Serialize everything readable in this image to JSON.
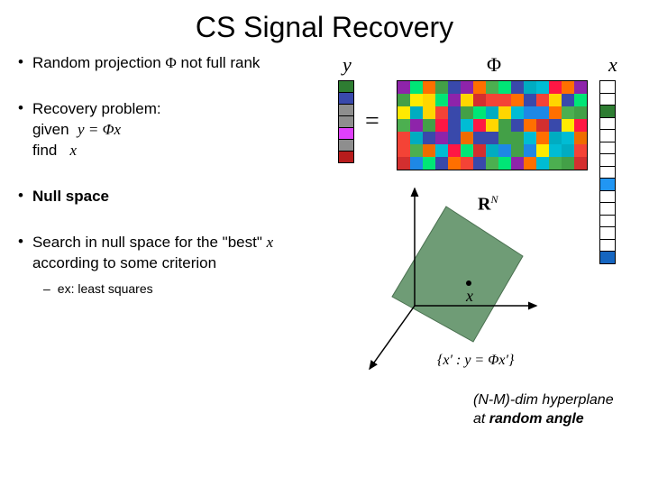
{
  "title": "CS Signal Recovery",
  "bullets": {
    "b1_pre": "Random projection ",
    "b1_post": " not full rank",
    "b1_sym": "Φ",
    "b2_pre": "Recovery problem: given ",
    "b2_mid": " find ",
    "b2_eq": "y = Φx",
    "b2_x": "x",
    "b3": "Null space",
    "b4_pre": "Search in null space for the \"best\" ",
    "b4_post": " according to some criterion",
    "b4_x": "x",
    "sub": "ex: least squares"
  },
  "labels": {
    "y": "y",
    "phi": "Φ",
    "x": "x",
    "eq": "=",
    "rn_pre": "R",
    "rn_sup": "N",
    "x_point": "x",
    "set": "{x′ :  y = Φx′}"
  },
  "caption_l1": "(N-M)-dim hyperplane",
  "caption_l2_pre": "at ",
  "caption_l2_bold": "random angle",
  "y_colors": [
    "#2e7d32",
    "#3949ab",
    "#8e8e8e",
    "#8e8e8e",
    "#e040fb",
    "#8e8e8e",
    "#b71c1c"
  ],
  "x_colors": [
    "#ffffff",
    "#ffffff",
    "#2e7d32",
    "#ffffff",
    "#ffffff",
    "#ffffff",
    "#ffffff",
    "#ffffff",
    "#2196f3",
    "#ffffff",
    "#ffffff",
    "#ffffff",
    "#ffffff",
    "#ffffff",
    "#1565c0"
  ],
  "phi_palette": [
    "#d32f2f",
    "#ff6f00",
    "#ffd600",
    "#43a047",
    "#00acc1",
    "#1e88e5",
    "#3949ab",
    "#8e24aa",
    "#00e676",
    "#ff1744",
    "#ffea00",
    "#00bcd4",
    "#ef6c00",
    "#4caf50",
    "#f44336"
  ],
  "plane_color": "#6f9c76",
  "axis_color": "#000000"
}
